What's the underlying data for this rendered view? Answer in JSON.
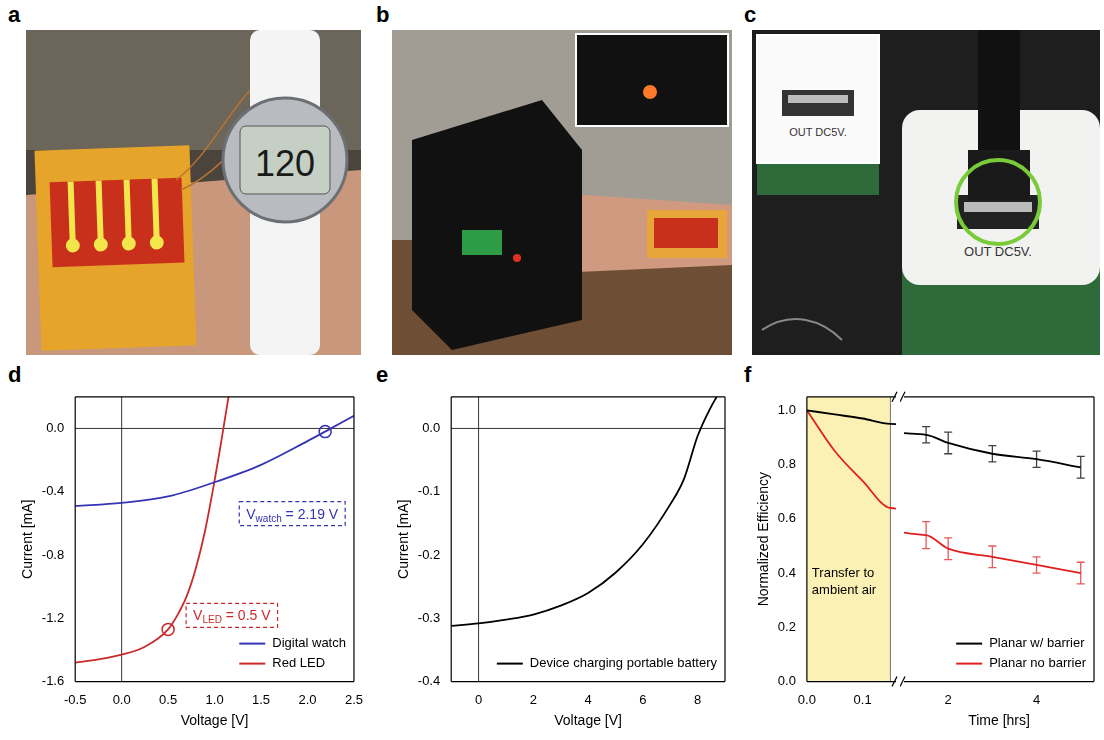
{
  "photos": [
    {
      "letter": "a",
      "texts": [
        "120"
      ]
    },
    {
      "letter": "b"
    },
    {
      "letter": "c",
      "texts": [
        "OUT DC5V.",
        "OUT DC5V."
      ]
    }
  ],
  "chart_data": [
    {
      "letter": "d",
      "type": "line",
      "x_label": "Voltage [V]",
      "y_label": "Current [mA]",
      "xlim": [
        -0.5,
        2.5
      ],
      "xticks": [
        -0.5,
        {
          "value": 0,
          "label": "0.0"
        },
        0.5,
        {
          "value": 1,
          "label": "1.0"
        },
        1.5,
        {
          "value": 2,
          "label": "2.0"
        },
        2.5
      ],
      "ylim": [
        -1.6,
        0.2
      ],
      "yticks": [
        -1.6,
        -1.2,
        -0.8,
        -0.4,
        {
          "value": 0,
          "label": "0.0"
        }
      ],
      "grid": false,
      "legend": "lower right",
      "series": [
        {
          "name": "Digital watch",
          "color": "#3434b4",
          "x": [
            -0.5,
            0,
            0.5,
            1,
            1.5,
            2,
            2.19,
            2.5
          ],
          "values": [
            -0.49,
            -0.47,
            -0.43,
            -0.34,
            -0.23,
            -0.08,
            -0.02,
            0.08
          ]
        },
        {
          "name": "Red LED",
          "color": "#c92a2a",
          "x": [
            -0.5,
            -0.25,
            0,
            0.25,
            0.5,
            0.6,
            0.7,
            0.8,
            0.9,
            1.0,
            1.05,
            1.1,
            1.15
          ],
          "values": [
            -1.48,
            -1.46,
            -1.43,
            -1.38,
            -1.27,
            -1.18,
            -1.06,
            -0.88,
            -0.64,
            -0.33,
            -0.16,
            0.02,
            0.2
          ]
        }
      ],
      "annotations": [
        {
          "series": "Digital watch",
          "x": 2.19,
          "y": -0.02,
          "text": "V",
          "subscript": "watch",
          "suffix": " = 2.19 V"
        },
        {
          "series": "Red LED",
          "x": 0.5,
          "y": -1.27,
          "text": "V",
          "subscript": "LED",
          "suffix": " = 0.5 V"
        }
      ]
    },
    {
      "letter": "e",
      "type": "line",
      "x_label": "Voltage [V]",
      "y_label": "Current [mA]",
      "xlim": [
        -1,
        9
      ],
      "xticks": [
        0,
        2,
        4,
        6,
        8
      ],
      "ylim": [
        -0.4,
        0.05
      ],
      "yticks": [
        -0.4,
        -0.3,
        -0.2,
        -0.1,
        {
          "value": 0,
          "label": "0.0"
        }
      ],
      "grid": false,
      "legend": "lower right",
      "series": [
        {
          "name": "Device charging portable battery",
          "color": "#000000",
          "x": [
            -1,
            0,
            1,
            2,
            3,
            4,
            5,
            6,
            7,
            7.5,
            8,
            8.5,
            8.7
          ],
          "values": [
            -0.312,
            -0.308,
            -0.302,
            -0.294,
            -0.28,
            -0.26,
            -0.228,
            -0.183,
            -0.12,
            -0.08,
            -0.012,
            0.035,
            0.05
          ]
        }
      ]
    },
    {
      "letter": "f",
      "type": "line",
      "x_label": "Time [hrs]",
      "y_label": "Normalized Efficiency",
      "xlim": [
        0,
        5.3
      ],
      "x_break": [
        0.16,
        1
      ],
      "xticks": [
        {
          "value": 0,
          "label": "0.0"
        },
        0.1,
        2,
        4
      ],
      "ylim": [
        0,
        1.05
      ],
      "yticks": [
        {
          "value": 0,
          "label": "0.0"
        },
        0.2,
        0.4,
        0.6,
        0.8,
        {
          "value": 1,
          "label": "1.0"
        }
      ],
      "grid": false,
      "legend": "lower right",
      "shaded_region": {
        "x": [
          0,
          0.15
        ],
        "label": "Transfer to ambient air"
      },
      "series": [
        {
          "name": "Planar w/ barrier",
          "color": "#000000",
          "x": [
            0,
            0.05,
            0.1,
            0.15,
            1.5,
            2,
            3,
            4,
            5
          ],
          "values": [
            1,
            0.985,
            0.97,
            0.95,
            0.91,
            0.88,
            0.84,
            0.82,
            0.79
          ],
          "errors": [
            null,
            null,
            null,
            null,
            0.03,
            0.04,
            0.03,
            0.03,
            0.04
          ]
        },
        {
          "name": "Planar no barrier",
          "color": "#e02020",
          "x": [
            0,
            0.05,
            0.1,
            0.15,
            1.5,
            2,
            3,
            4,
            5
          ],
          "values": [
            1,
            0.85,
            0.74,
            0.64,
            0.54,
            0.49,
            0.46,
            0.43,
            0.4
          ],
          "errors": [
            null,
            null,
            null,
            null,
            0.05,
            0.04,
            0.04,
            0.03,
            0.04
          ]
        }
      ]
    }
  ]
}
